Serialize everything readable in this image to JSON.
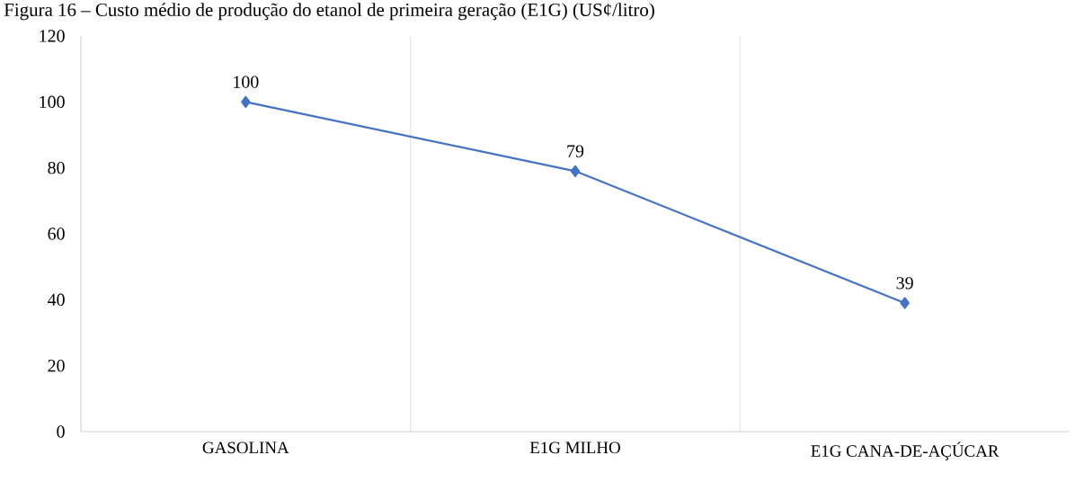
{
  "chart_data": {
    "type": "line",
    "title": "Figura 16 – Custo médio de produção do etanol de primeira geração (E1G) (US¢/litro)",
    "categories": [
      "GASOLINA",
      "E1G MILHO",
      "E1G CANA-DE-AÇÚCAR"
    ],
    "values": [
      100,
      79,
      39
    ],
    "color": "#4472c4",
    "marker": "diamond",
    "line_style": "solid",
    "data_labels": true,
    "ylim": [
      0,
      120
    ],
    "yticks": [
      0,
      20,
      40,
      60,
      80,
      100,
      120
    ],
    "grid": "x"
  }
}
